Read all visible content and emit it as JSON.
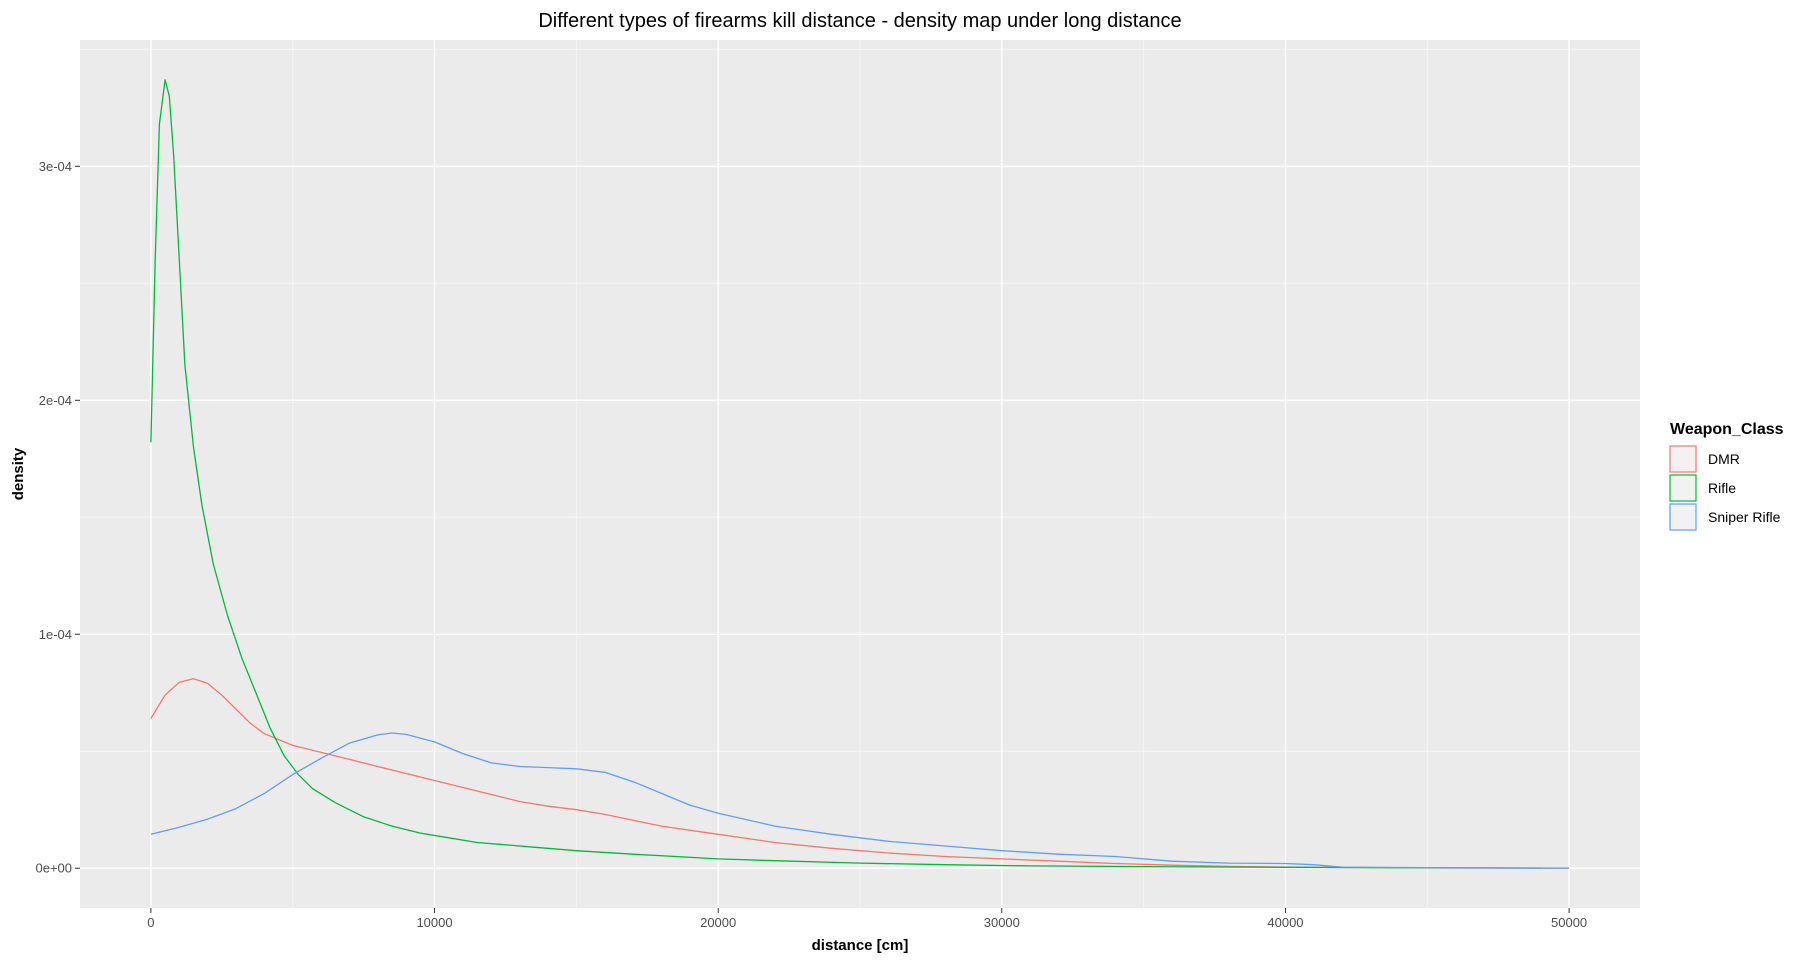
{
  "chart_data": {
    "type": "line",
    "title": "Different types of firearms kill distance - density map under long distance",
    "xlabel": "distance [cm]",
    "ylabel": "density",
    "xlim": [
      -2500,
      52500
    ],
    "ylim": [
      -1.7e-05,
      0.000354
    ],
    "x_ticks": [
      0,
      10000,
      20000,
      30000,
      40000,
      50000
    ],
    "y_ticks": [
      0,
      0.0001,
      0.0002,
      0.0003
    ],
    "y_tick_labels": [
      "0e+00",
      "1e-04",
      "2e-04",
      "3e-04"
    ],
    "grid": true,
    "legend": {
      "title": "Weapon_Class",
      "position": "right"
    },
    "series": [
      {
        "name": "DMR",
        "color": "#F8766D",
        "points": [
          [
            0,
            6.4e-05
          ],
          [
            500,
            7.4e-05
          ],
          [
            1000,
            7.95e-05
          ],
          [
            1500,
            8.1e-05
          ],
          [
            2000,
            7.9e-05
          ],
          [
            2500,
            7.4e-05
          ],
          [
            3000,
            6.8e-05
          ],
          [
            3500,
            6.2e-05
          ],
          [
            4000,
            5.75e-05
          ],
          [
            5000,
            5.25e-05
          ],
          [
            6000,
            4.95e-05
          ],
          [
            7000,
            4.65e-05
          ],
          [
            8000,
            4.35e-05
          ],
          [
            9000,
            4.05e-05
          ],
          [
            10000,
            3.75e-05
          ],
          [
            11000,
            3.45e-05
          ],
          [
            12000,
            3.15e-05
          ],
          [
            13000,
            2.85e-05
          ],
          [
            14000,
            2.65e-05
          ],
          [
            15000,
            2.5e-05
          ],
          [
            16000,
            2.3e-05
          ],
          [
            17000,
            2.05e-05
          ],
          [
            18000,
            1.8e-05
          ],
          [
            20000,
            1.45e-05
          ],
          [
            22000,
            1.1e-05
          ],
          [
            24000,
            8.5e-06
          ],
          [
            26000,
            6.5e-06
          ],
          [
            28000,
            5e-06
          ],
          [
            30000,
            4e-06
          ],
          [
            32000,
            3e-06
          ],
          [
            34000,
            2e-06
          ],
          [
            36000,
            1.3e-06
          ],
          [
            38000,
            8e-07
          ],
          [
            40000,
            5e-07
          ],
          [
            42000,
            3e-07
          ],
          [
            44000,
            2e-07
          ],
          [
            46000,
            1e-07
          ],
          [
            48000,
            5e-08
          ],
          [
            50000,
            2e-08
          ]
        ]
      },
      {
        "name": "Rifle",
        "color": "#00BA38",
        "points": [
          [
            0,
            0.000182
          ],
          [
            150,
            0.00026
          ],
          [
            300,
            0.000318
          ],
          [
            500,
            0.000337
          ],
          [
            650,
            0.00033
          ],
          [
            800,
            0.000305
          ],
          [
            1000,
            0.00026
          ],
          [
            1200,
            0.000215
          ],
          [
            1500,
            0.00018
          ],
          [
            1800,
            0.000155
          ],
          [
            2200,
            0.00013
          ],
          [
            2700,
            0.000108
          ],
          [
            3200,
            9e-05
          ],
          [
            3700,
            7.5e-05
          ],
          [
            4200,
            6e-05
          ],
          [
            4700,
            4.8e-05
          ],
          [
            5200,
            4e-05
          ],
          [
            5700,
            3.4e-05
          ],
          [
            6500,
            2.8e-05
          ],
          [
            7500,
            2.2e-05
          ],
          [
            8500,
            1.8e-05
          ],
          [
            9500,
            1.5e-05
          ],
          [
            10500,
            1.3e-05
          ],
          [
            11500,
            1.1e-05
          ],
          [
            12500,
            1e-05
          ],
          [
            13500,
            9e-06
          ],
          [
            15000,
            7.5e-06
          ],
          [
            17000,
            6e-06
          ],
          [
            18500,
            5e-06
          ],
          [
            20000,
            4e-06
          ],
          [
            22000,
            3.2e-06
          ],
          [
            25000,
            2.2e-06
          ],
          [
            28000,
            1.5e-06
          ],
          [
            31000,
            1e-06
          ],
          [
            35000,
            7e-07
          ],
          [
            40000,
            4e-07
          ],
          [
            45000,
            2e-07
          ],
          [
            49000,
            1e-07
          ]
        ]
      },
      {
        "name": "Sniper Rifle",
        "color": "#619CFF",
        "points": [
          [
            0,
            1.45e-05
          ],
          [
            1000,
            1.75e-05
          ],
          [
            2000,
            2.1e-05
          ],
          [
            3000,
            2.55e-05
          ],
          [
            4000,
            3.2e-05
          ],
          [
            5000,
            4e-05
          ],
          [
            6000,
            4.7e-05
          ],
          [
            7000,
            5.35e-05
          ],
          [
            8000,
            5.7e-05
          ],
          [
            8500,
            5.78e-05
          ],
          [
            9000,
            5.72e-05
          ],
          [
            10000,
            5.4e-05
          ],
          [
            11000,
            4.9e-05
          ],
          [
            12000,
            4.5e-05
          ],
          [
            13000,
            4.35e-05
          ],
          [
            14000,
            4.3e-05
          ],
          [
            15000,
            4.25e-05
          ],
          [
            16000,
            4.1e-05
          ],
          [
            17000,
            3.7e-05
          ],
          [
            18000,
            3.2e-05
          ],
          [
            19000,
            2.7e-05
          ],
          [
            20000,
            2.35e-05
          ],
          [
            22000,
            1.8e-05
          ],
          [
            24000,
            1.45e-05
          ],
          [
            26000,
            1.15e-05
          ],
          [
            28000,
            9.5e-06
          ],
          [
            30000,
            7.5e-06
          ],
          [
            32000,
            6e-06
          ],
          [
            34000,
            5e-06
          ],
          [
            36000,
            3e-06
          ],
          [
            38000,
            2.2e-06
          ],
          [
            40000,
            2e-06
          ],
          [
            41000,
            1.5e-06
          ],
          [
            42000,
            5e-07
          ],
          [
            44000,
            3e-07
          ],
          [
            46000,
            2e-07
          ],
          [
            48000,
            1e-07
          ],
          [
            50000,
            5e-08
          ]
        ]
      }
    ]
  }
}
